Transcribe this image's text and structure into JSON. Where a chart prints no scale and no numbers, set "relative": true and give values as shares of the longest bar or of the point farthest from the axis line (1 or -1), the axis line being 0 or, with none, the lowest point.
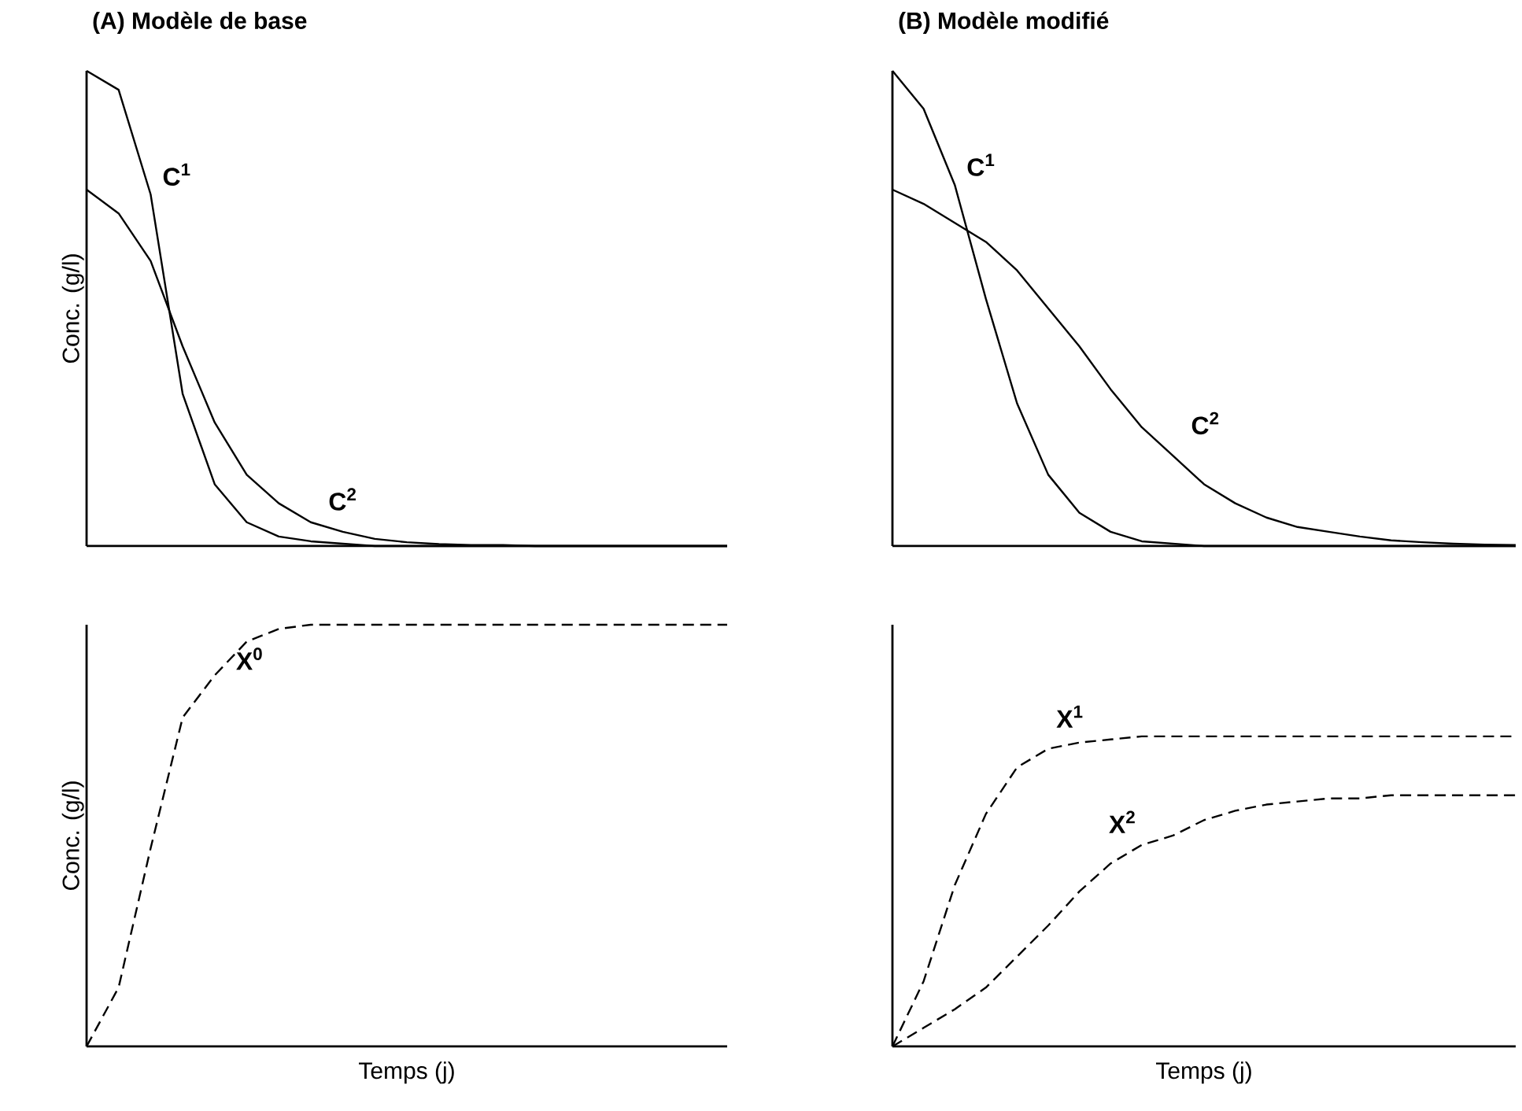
{
  "chart_data": [
    {
      "type": "line",
      "title": "(A) Modèle de base",
      "ylabel": "Conc. (g/l)",
      "relative": true,
      "line_style": "solid",
      "categories": [
        null,
        null,
        null,
        null,
        null,
        null,
        null,
        null,
        null,
        null,
        null,
        null,
        null,
        null,
        null,
        null,
        null,
        null,
        null,
        null,
        null
      ],
      "series": [
        {
          "name": "C$^{1}$",
          "color": "#000000",
          "values": [
            1.0,
            0.96,
            0.74,
            0.32,
            0.13,
            0.05,
            0.02,
            0.01,
            0.005,
            0,
            0,
            0,
            0,
            0,
            0,
            0,
            0,
            0,
            0,
            0,
            0
          ]
        },
        {
          "name": "C$^{2}$",
          "color": "#000000",
          "values": [
            0.75,
            0.7,
            0.6,
            0.42,
            0.26,
            0.15,
            0.09,
            0.05,
            0.03,
            0.015,
            0.008,
            0.004,
            0.002,
            0.002,
            0,
            0,
            0,
            0,
            0,
            0,
            0
          ]
        }
      ]
    },
    {
      "type": "line",
      "title": "(B) Modèle modifié",
      "relative": true,
      "line_style": "solid",
      "categories": [
        null,
        null,
        null,
        null,
        null,
        null,
        null,
        null,
        null,
        null,
        null,
        null,
        null,
        null,
        null,
        null,
        null,
        null,
        null,
        null,
        null
      ],
      "series": [
        {
          "name": "C$^{1}$",
          "color": "#000000",
          "values": [
            1.0,
            0.92,
            0.76,
            0.52,
            0.3,
            0.15,
            0.07,
            0.03,
            0.01,
            0.005,
            0,
            0,
            0,
            0,
            0,
            0,
            0,
            0,
            0,
            0,
            0
          ]
        },
        {
          "name": "C$^{2}$",
          "color": "#000000",
          "values": [
            0.75,
            0.72,
            0.68,
            0.64,
            0.58,
            0.5,
            0.42,
            0.33,
            0.25,
            0.19,
            0.13,
            0.09,
            0.06,
            0.04,
            0.03,
            0.02,
            0.012,
            0.008,
            0.005,
            0.003,
            0.002
          ]
        }
      ]
    },
    {
      "type": "line",
      "ylabel": "Conc. (g/l)",
      "xlabel": "Temps (j)",
      "relative": true,
      "line_style": "dashed",
      "categories": [
        null,
        null,
        null,
        null,
        null,
        null,
        null,
        null,
        null,
        null,
        null,
        null,
        null,
        null,
        null,
        null,
        null,
        null,
        null,
        null,
        null
      ],
      "series": [
        {
          "name": "X$^{0}$",
          "color": "#000000",
          "values": [
            0,
            0.14,
            0.47,
            0.78,
            0.88,
            0.96,
            0.99,
            1.0,
            1.0,
            1.0,
            1.0,
            1.0,
            1.0,
            1.0,
            1.0,
            1.0,
            1.0,
            1.0,
            1.0,
            1.0,
            1.0
          ]
        }
      ]
    },
    {
      "type": "line",
      "xlabel": "Temps (j)",
      "relative": true,
      "line_style": "dashed",
      "categories": [
        null,
        null,
        null,
        null,
        null,
        null,
        null,
        null,
        null,
        null,
        null,
        null,
        null,
        null,
        null,
        null,
        null,
        null,
        null,
        null,
        null
      ],
      "series": [
        {
          "name": "X$^{1}$",
          "color": "#000000",
          "values": [
            0,
            0.21,
            0.52,
            0.75,
            0.9,
            0.96,
            0.98,
            0.99,
            1.0,
            1.0,
            1.0,
            1.0,
            1.0,
            1.0,
            1.0,
            1.0,
            1.0,
            1.0,
            1.0,
            1.0,
            1.0
          ]
        },
        {
          "name": "X$^{2}$",
          "color": "#000000",
          "values": [
            0,
            0.06,
            0.12,
            0.19,
            0.29,
            0.39,
            0.5,
            0.59,
            0.65,
            0.68,
            0.73,
            0.76,
            0.78,
            0.79,
            0.8,
            0.8,
            0.81,
            0.81,
            0.81,
            0.81,
            0.81
          ]
        }
      ]
    }
  ]
}
